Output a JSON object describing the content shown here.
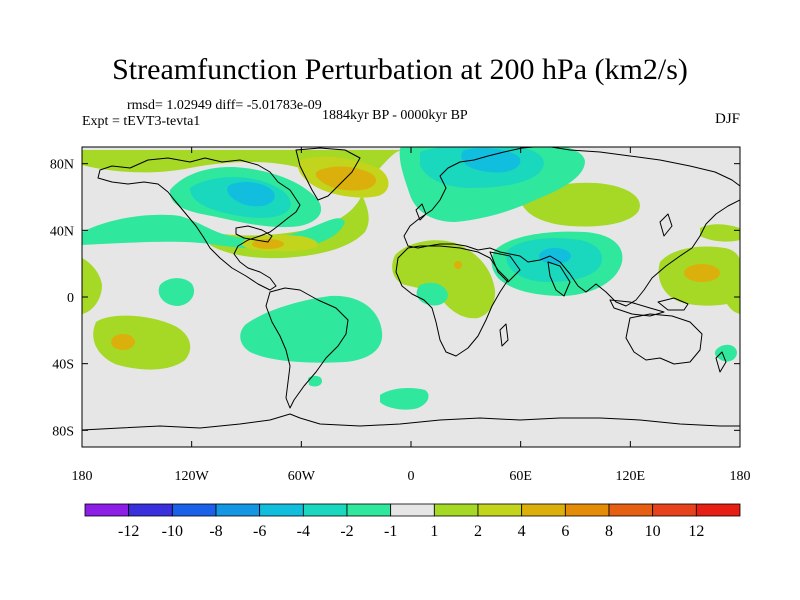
{
  "title": "Streamfunction Perturbation at 200 hPa (km2/s)",
  "stats_line": "rmsd= 1.02949 diff= -5.01783e-09",
  "experiment_label": "Expt = tEVT3-tevta1",
  "period_label": "1884kyr BP - 0000kyr BP",
  "season_label": "DJF",
  "map": {
    "projection": "cylindrical-equidistant",
    "lon_range": [
      -180,
      180
    ],
    "lat_range": [
      -90,
      90
    ],
    "ocean_color": "#e6e6e6",
    "coast_color": "#000000"
  },
  "axes": {
    "x_ticks": [
      {
        "lon": -180,
        "label": "180"
      },
      {
        "lon": -120,
        "label": "120W"
      },
      {
        "lon": -60,
        "label": "60W"
      },
      {
        "lon": 0,
        "label": "0"
      },
      {
        "lon": 60,
        "label": "60E"
      },
      {
        "lon": 120,
        "label": "120E"
      },
      {
        "lon": 180,
        "label": "180"
      }
    ],
    "y_ticks": [
      {
        "lat": 80,
        "label": "80N"
      },
      {
        "lat": 40,
        "label": "40N"
      },
      {
        "lat": 0,
        "label": "0"
      },
      {
        "lat": -40,
        "label": "40S"
      },
      {
        "lat": -80,
        "label": "80S"
      }
    ]
  },
  "colorbar": {
    "colors": [
      "#8d1ee6",
      "#3a2fdc",
      "#1a60e8",
      "#1496e2",
      "#12bede",
      "#1ad8bd",
      "#2fe79d",
      "#e6e6e6",
      "#a6d826",
      "#c2d51c",
      "#dcb00c",
      "#e48c08",
      "#e66014",
      "#e6421e",
      "#e61e14"
    ],
    "labels": [
      "-12",
      "-10",
      "-8",
      "-6",
      "-4",
      "-2",
      "-1",
      "1",
      "2",
      "4",
      "6",
      "8",
      "10",
      "12"
    ]
  },
  "chart_data": {
    "type": "heatmap",
    "title": "Streamfunction Perturbation at 200 hPa (km2/s)",
    "variable": "streamfunction perturbation",
    "units": "km2/s",
    "level": "200 hPa",
    "season": "DJF",
    "contour_levels": [
      -12,
      -10,
      -8,
      -6,
      -4,
      -2,
      -1,
      1,
      2,
      4,
      6,
      8,
      10,
      12
    ],
    "features": [
      {
        "region": "North America / Greenland",
        "center_lon": -95,
        "center_lat": 60,
        "value_range": [
          -4,
          -2
        ],
        "sign": "negative"
      },
      {
        "region": "North Atlantic / Scandinavia / Arctic Europe",
        "center_lon": 20,
        "center_lat": 75,
        "value_range": [
          -4,
          -2
        ],
        "sign": "negative"
      },
      {
        "region": "South Asia / Indian Ocean",
        "center_lon": 80,
        "center_lat": 25,
        "value_range": [
          -4,
          -2
        ],
        "sign": "negative"
      },
      {
        "region": "South America / South Atlantic",
        "center_lon": -60,
        "center_lat": -15,
        "value_range": [
          -2,
          -1
        ],
        "sign": "negative"
      },
      {
        "region": "North Atlantic (Greenland sea)",
        "center_lon": -40,
        "center_lat": 70,
        "value_range": [
          2,
          4
        ],
        "sign": "positive"
      },
      {
        "region": "Gulf of Mexico / subtropical Atlantic",
        "center_lon": -75,
        "center_lat": 30,
        "value_range": [
          2,
          4
        ],
        "sign": "positive"
      },
      {
        "region": "Central Asia",
        "center_lon": 65,
        "center_lat": 52,
        "value_range": [
          1,
          2
        ],
        "sign": "positive"
      },
      {
        "region": "West Pacific",
        "center_lon": 160,
        "center_lat": 13,
        "value_range": [
          2,
          4
        ],
        "sign": "positive"
      },
      {
        "region": "South Pacific",
        "center_lon": -150,
        "center_lat": -25,
        "value_range": [
          2,
          4
        ],
        "sign": "positive"
      },
      {
        "region": "Africa / tropical Atlantic",
        "center_lon": 10,
        "center_lat": 15,
        "value_range": [
          1,
          2
        ],
        "sign": "positive"
      }
    ]
  }
}
